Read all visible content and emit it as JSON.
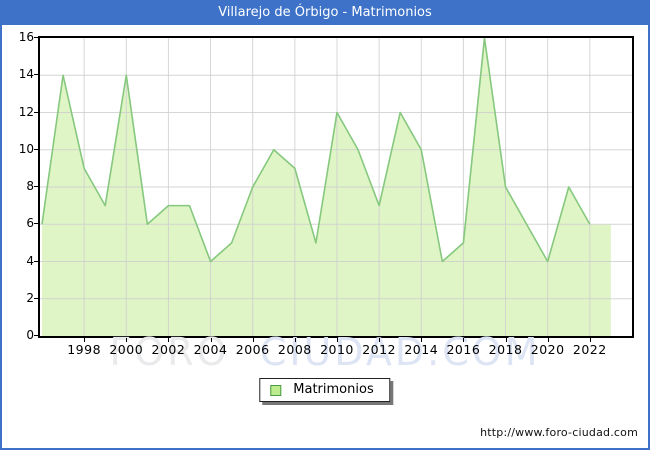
{
  "window": {
    "title": "Villarejo de Órbigo - Matrimonios"
  },
  "chart_data": {
    "type": "area",
    "title": "Villarejo de Órbigo - Matrimonios",
    "x": [
      1996,
      1997,
      1998,
      1999,
      2000,
      2001,
      2002,
      2003,
      2004,
      2005,
      2006,
      2007,
      2008,
      2009,
      2010,
      2011,
      2012,
      2013,
      2014,
      2015,
      2016,
      2017,
      2018,
      2019,
      2020,
      2021,
      2022,
      2023
    ],
    "values": [
      6,
      14,
      9,
      7,
      14,
      6,
      7,
      7,
      4,
      5,
      8,
      10,
      9,
      5,
      12,
      10,
      7,
      12,
      10,
      4,
      5,
      16,
      8,
      6,
      4,
      8,
      6,
      6
    ],
    "series_name": "Matrimonios",
    "xlabel": "",
    "ylabel": "",
    "ylim": [
      0,
      16
    ],
    "yticks": [
      0,
      2,
      4,
      6,
      8,
      10,
      12,
      14,
      16
    ],
    "xticks": [
      1998,
      2000,
      2002,
      2004,
      2006,
      2008,
      2010,
      2012,
      2014,
      2016,
      2018,
      2020,
      2022
    ],
    "grid": true,
    "legend_position": "bottom-center",
    "colors": {
      "titlebar_bg": "#3d72c8",
      "frame": "#3d72c8",
      "area_fill": "#dff5c5",
      "line_stroke": "#86c87e",
      "gridline": "#cfcfcf",
      "plot_border": "#000000",
      "legend_swatch_fill": "#bdec8e",
      "legend_swatch_border": "#4a9a44"
    }
  },
  "legend": {
    "label": "Matrimonios"
  },
  "watermark": {
    "part1": "FORO",
    "part2": "CIUDAD.COM"
  },
  "footer": {
    "url": "http://www.foro-ciudad.com"
  }
}
